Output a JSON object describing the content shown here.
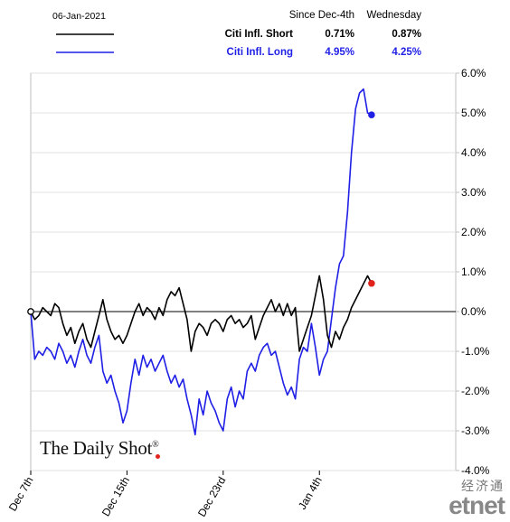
{
  "legend": {
    "date": "06-Jan-2021",
    "col1": "Since Dec-4th",
    "col2": "Wednesday",
    "rows": [
      {
        "name": "Citi Infl. Short",
        "v1": "0.71%",
        "v2": "0.87%",
        "color": "#000000"
      },
      {
        "name": "Citi Infl. Long",
        "v1": "4.95%",
        "v2": "4.25%",
        "color": "#1f1fe6"
      }
    ]
  },
  "watermark": {
    "text": "The Daily Shot",
    "mark": "®"
  },
  "etnet": {
    "cn": "经济通",
    "en": "etnet"
  },
  "chart_data": {
    "type": "line",
    "x_axis_ticks": [
      "Dec 7th",
      "Dec 15th",
      "Dec 23rd",
      "Jan 4th"
    ],
    "x_tick_positions": [
      0,
      24,
      48,
      72
    ],
    "ylim": [
      -4.0,
      6.0
    ],
    "y_ticks": [
      "-4.0%",
      "-3.0%",
      "-2.0%",
      "-1.0%",
      "0.0%",
      "1.0%",
      "2.0%",
      "3.0%",
      "4.0%",
      "5.0%",
      "6.0%"
    ],
    "y_tick_values": [
      -4,
      -3,
      -2,
      -1,
      0,
      1,
      2,
      3,
      4,
      5,
      6
    ],
    "zero_line": true,
    "series": [
      {
        "name": "Citi Infl. Short",
        "color": "#000000",
        "end_marker_color": "#e2231a",
        "x": [
          0,
          1,
          2,
          3,
          4,
          5,
          6,
          7,
          8,
          9,
          10,
          11,
          12,
          13,
          14,
          15,
          16,
          17,
          18,
          19,
          20,
          21,
          22,
          23,
          24,
          25,
          26,
          27,
          28,
          29,
          30,
          31,
          32,
          33,
          34,
          35,
          36,
          37,
          38,
          39,
          40,
          41,
          42,
          43,
          44,
          45,
          46,
          47,
          48,
          49,
          50,
          51,
          52,
          53,
          54,
          55,
          56,
          57,
          58,
          59,
          60,
          61,
          62,
          63,
          64,
          65,
          66,
          67,
          68,
          69,
          70,
          71,
          72,
          73,
          74,
          75,
          76,
          77,
          78,
          79,
          80,
          81,
          82,
          83,
          84,
          85
        ],
        "values": [
          0.0,
          -0.2,
          -0.1,
          0.1,
          0.0,
          -0.1,
          0.2,
          0.1,
          -0.3,
          -0.6,
          -0.4,
          -0.8,
          -0.5,
          -0.3,
          -0.7,
          -0.9,
          -0.5,
          -0.1,
          0.3,
          -0.2,
          -0.5,
          -0.7,
          -0.6,
          -0.8,
          -0.6,
          -0.3,
          0.0,
          0.2,
          -0.1,
          0.1,
          0.0,
          -0.2,
          0.1,
          -0.1,
          0.3,
          0.5,
          0.4,
          0.6,
          0.2,
          -0.2,
          -1.0,
          -0.5,
          -0.3,
          -0.4,
          -0.6,
          -0.3,
          -0.2,
          -0.3,
          -0.5,
          -0.2,
          -0.1,
          -0.3,
          -0.2,
          -0.4,
          -0.3,
          -0.1,
          -0.7,
          -0.4,
          -0.1,
          0.1,
          0.3,
          0.0,
          0.2,
          -0.1,
          0.2,
          -0.1,
          0.1,
          -1.0,
          -0.7,
          -0.4,
          -0.1,
          0.4,
          0.9,
          0.3,
          -0.6,
          -0.9,
          -0.5,
          -0.7,
          -0.4,
          -0.2,
          0.1,
          0.3,
          0.5,
          0.7,
          0.9,
          0.71
        ]
      },
      {
        "name": "Citi Infl. Long",
        "color": "#1f1fe6",
        "end_marker_color": "#1f1fe6",
        "x": [
          0,
          1,
          2,
          3,
          4,
          5,
          6,
          7,
          8,
          9,
          10,
          11,
          12,
          13,
          14,
          15,
          16,
          17,
          18,
          19,
          20,
          21,
          22,
          23,
          24,
          25,
          26,
          27,
          28,
          29,
          30,
          31,
          32,
          33,
          34,
          35,
          36,
          37,
          38,
          39,
          40,
          41,
          42,
          43,
          44,
          45,
          46,
          47,
          48,
          49,
          50,
          51,
          52,
          53,
          54,
          55,
          56,
          57,
          58,
          59,
          60,
          61,
          62,
          63,
          64,
          65,
          66,
          67,
          68,
          69,
          70,
          71,
          72,
          73,
          74,
          75,
          76,
          77,
          78,
          79,
          80,
          81,
          82,
          83,
          84,
          85
        ],
        "values": [
          0.0,
          -1.2,
          -1.0,
          -1.1,
          -0.9,
          -1.0,
          -1.2,
          -0.8,
          -1.0,
          -1.3,
          -1.1,
          -1.4,
          -1.0,
          -0.7,
          -1.1,
          -1.3,
          -0.9,
          -0.6,
          -1.5,
          -1.8,
          -1.6,
          -2.0,
          -2.3,
          -2.8,
          -2.5,
          -1.8,
          -1.2,
          -1.6,
          -1.1,
          -1.4,
          -1.2,
          -1.5,
          -1.3,
          -1.1,
          -1.5,
          -1.8,
          -1.6,
          -1.9,
          -1.7,
          -2.2,
          -2.6,
          -3.1,
          -2.2,
          -2.6,
          -2.0,
          -2.3,
          -2.5,
          -2.8,
          -3.0,
          -2.2,
          -1.9,
          -2.4,
          -2.0,
          -2.2,
          -1.5,
          -1.3,
          -1.5,
          -1.1,
          -0.9,
          -0.8,
          -1.1,
          -1.0,
          -1.4,
          -1.8,
          -2.1,
          -1.9,
          -2.2,
          -1.2,
          -0.9,
          -1.0,
          -0.3,
          -0.9,
          -1.6,
          -1.2,
          -1.0,
          -0.2,
          0.6,
          1.2,
          1.4,
          2.5,
          4.0,
          5.1,
          5.5,
          5.6,
          5.0,
          4.95
        ]
      }
    ]
  }
}
